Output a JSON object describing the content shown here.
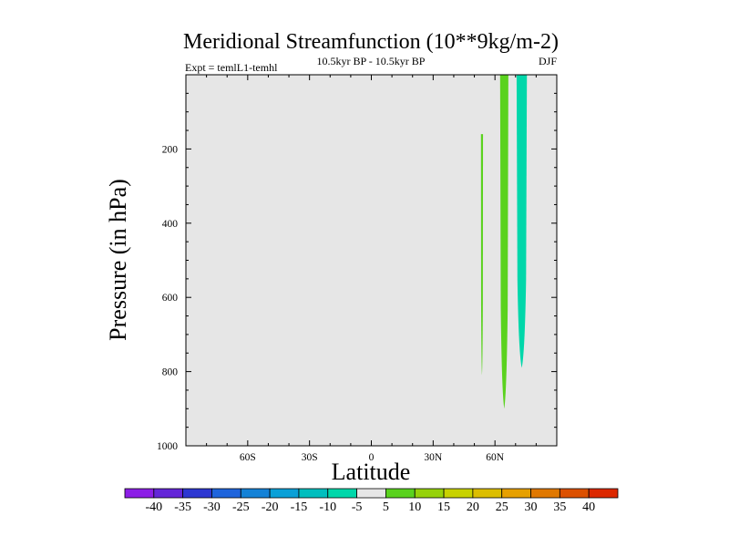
{
  "chart_data": {
    "type": "contour",
    "title": "Meridional Streamfunction (10**9kg/m-2)",
    "subtitle_left": "Expt = temlL1-temhl",
    "subtitle_center": "10.5kyr BP - 10.5kyr BP",
    "season": "DJF",
    "xlabel": "Latitude",
    "ylabel": "Pressure (in hPa)",
    "xlim": [
      -90,
      90
    ],
    "ylim": [
      1000,
      0
    ],
    "x_ticks": [
      -60,
      -30,
      0,
      30,
      60
    ],
    "x_tick_labels": [
      "60S",
      "30S",
      "0",
      "30N",
      "60N"
    ],
    "y_ticks": [
      200,
      400,
      600,
      800,
      1000
    ],
    "y_tick_labels": [
      "200",
      "400",
      "600",
      "800",
      "1000"
    ],
    "colorbar": {
      "labels": [
        "-40",
        "-35",
        "-30",
        "-25",
        "-20",
        "-15",
        "-10",
        "-5",
        "5",
        "10",
        "15",
        "20",
        "25",
        "30",
        "35",
        "40"
      ],
      "colors": [
        "#8c1ee6",
        "#6426d8",
        "#2d37d2",
        "#1e64dc",
        "#1482d7",
        "#0aa0d7",
        "#00bebe",
        "#00d7aa",
        "#e6e6e6",
        "#5ad21e",
        "#96d20a",
        "#c8d200",
        "#dcbe00",
        "#e6a000",
        "#e07800",
        "#dc5000",
        "#dc2800"
      ]
    },
    "background_color": "#e6e6e6",
    "regions": [
      {
        "name": "fill-0-5",
        "value_range": "0 to 5",
        "color": "#e6e6e6",
        "lat_min": -90,
        "lat_max": 90,
        "p_top": 0,
        "p_bottom": 1000
      },
      {
        "name": "fill-5-10-cell-a",
        "value_range": "5 to 10",
        "color": "#5ad21e",
        "lat_min": 53.2,
        "lat_max": 54.2,
        "p_top": 160,
        "p_bottom": 810
      },
      {
        "name": "fill-5-10-cell-b",
        "value_range": "5 to 10",
        "color": "#5ad21e",
        "lat_min": 62.5,
        "lat_max": 66.5,
        "p_top": 0,
        "p_bottom": 900
      },
      {
        "name": "fill-neg-5-0-cell",
        "value_range": "-5 to 0",
        "color": "#00d7aa",
        "lat_min": 70.5,
        "lat_max": 75.5,
        "p_top": 0,
        "p_bottom": 790
      }
    ]
  }
}
